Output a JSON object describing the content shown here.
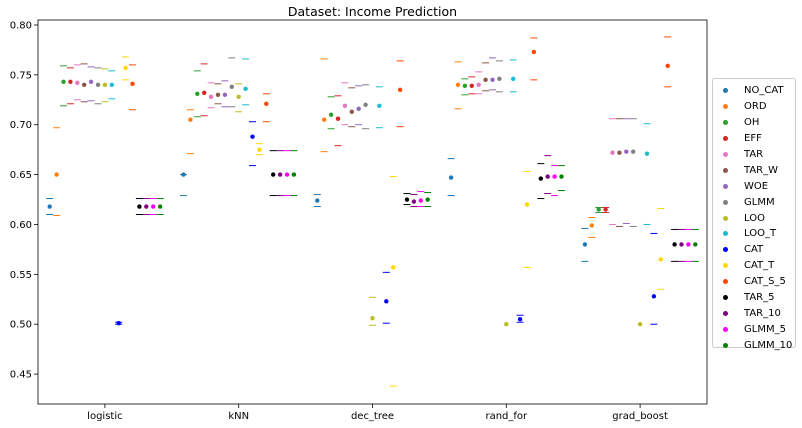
{
  "chart_data": {
    "type": "scatter",
    "title": "Dataset: Income Prediction",
    "xlabel": "",
    "ylabel": "",
    "ylim": [
      0.42,
      0.805
    ],
    "yticks": [
      "0.45",
      "0.50",
      "0.55",
      "0.60",
      "0.65",
      "0.70",
      "0.75",
      "0.80"
    ],
    "categories": [
      "logistic",
      "kNN",
      "dec_tree",
      "rand_for",
      "grad_boost"
    ],
    "legend_position": "center-right",
    "grid": false,
    "series": [
      {
        "name": "NO_CAT",
        "color": "#1f77b4",
        "values": [
          0.618,
          0.65,
          0.624,
          0.647,
          0.58
        ],
        "error_low": [
          0.61,
          0.629,
          0.618,
          0.629,
          0.563
        ],
        "error_high": [
          0.626,
          0.65,
          0.63,
          0.666,
          0.596
        ]
      },
      {
        "name": "ORD",
        "color": "#ff7f0e",
        "values": [
          0.65,
          0.705,
          0.705,
          0.74,
          0.599
        ],
        "error_low": [
          0.609,
          0.671,
          0.673,
          0.716,
          0.587
        ],
        "error_high": [
          0.697,
          0.715,
          0.766,
          0.763,
          0.607
        ]
      },
      {
        "name": "OH",
        "color": "#2ca02c",
        "values": [
          0.743,
          0.731,
          0.71,
          0.739,
          0.615
        ],
        "error_low": [
          0.719,
          0.708,
          0.696,
          0.73,
          0.612
        ],
        "error_high": [
          0.759,
          0.754,
          0.728,
          0.746,
          0.617
        ]
      },
      {
        "name": "EFF",
        "color": "#d62728",
        "values": [
          0.743,
          0.732,
          0.706,
          0.739,
          0.615
        ],
        "error_low": [
          0.721,
          0.709,
          0.679,
          0.731,
          0.612
        ],
        "error_high": [
          0.757,
          0.761,
          0.729,
          0.748,
          0.617
        ]
      },
      {
        "name": "TAR",
        "color": "#e377c2",
        "values": [
          0.742,
          0.728,
          0.719,
          0.74,
          0.672
        ],
        "error_low": [
          0.725,
          0.717,
          0.7,
          0.731,
          0.6
        ],
        "error_high": [
          0.76,
          0.742,
          0.742,
          0.753,
          0.706
        ]
      },
      {
        "name": "TAR_W",
        "color": "#8c564b",
        "values": [
          0.74,
          0.73,
          0.713,
          0.745,
          0.672
        ],
        "error_low": [
          0.723,
          0.721,
          0.698,
          0.734,
          0.598
        ],
        "error_high": [
          0.761,
          0.741,
          0.737,
          0.762,
          0.706
        ]
      },
      {
        "name": "WOE",
        "color": "#9467bd",
        "values": [
          0.743,
          0.73,
          0.716,
          0.745,
          0.673
        ],
        "error_low": [
          0.724,
          0.718,
          0.7,
          0.735,
          0.601
        ],
        "error_high": [
          0.758,
          0.744,
          0.739,
          0.767,
          0.706
        ]
      },
      {
        "name": "GLMM",
        "color": "#7f7f7f",
        "values": [
          0.74,
          0.738,
          0.72,
          0.746,
          0.673
        ],
        "error_low": [
          0.721,
          0.718,
          0.696,
          0.733,
          0.598
        ],
        "error_high": [
          0.757,
          0.767,
          0.74,
          0.764,
          0.706
        ]
      },
      {
        "name": "LOO",
        "color": "#bcbd22",
        "values": [
          0.74,
          0.728,
          0.506,
          0.5,
          0.5
        ],
        "error_low": [
          0.723,
          0.713,
          0.499,
          0.5,
          0.5
        ],
        "error_high": [
          0.756,
          0.741,
          0.527,
          0.5,
          0.5
        ]
      },
      {
        "name": "LOO_T",
        "color": "#17becf",
        "values": [
          0.74,
          0.736,
          0.719,
          0.746,
          0.671
        ],
        "error_low": [
          0.726,
          0.72,
          0.697,
          0.733,
          0.6
        ],
        "error_high": [
          0.754,
          0.766,
          0.738,
          0.765,
          0.701
        ]
      },
      {
        "name": "CAT",
        "color": "#0000ff",
        "values": [
          0.501,
          0.688,
          0.523,
          0.505,
          0.528
        ],
        "error_low": [
          0.5,
          0.659,
          0.501,
          0.502,
          0.5
        ],
        "error_high": [
          0.502,
          0.703,
          0.552,
          0.509,
          0.591
        ]
      },
      {
        "name": "CAT_T",
        "color": "#ffd700",
        "values": [
          0.757,
          0.675,
          0.557,
          0.62,
          0.565
        ],
        "error_low": [
          0.745,
          0.67,
          0.438,
          0.557,
          0.535
        ],
        "error_high": [
          0.768,
          0.681,
          0.648,
          0.653,
          0.616
        ]
      },
      {
        "name": "CAT_S_5",
        "color": "#ff4500",
        "values": [
          0.741,
          0.721,
          0.735,
          0.773,
          0.759
        ],
        "error_low": [
          0.715,
          0.703,
          0.698,
          0.745,
          0.738
        ],
        "error_high": [
          0.76,
          0.731,
          0.764,
          0.787,
          0.788
        ]
      },
      {
        "name": "TAR_5",
        "color": "#000000",
        "values": [
          0.618,
          0.65,
          0.625,
          0.646,
          0.58
        ],
        "error_low": [
          0.61,
          0.629,
          0.62,
          0.626,
          0.563
        ],
        "error_high": [
          0.626,
          0.674,
          0.631,
          0.661,
          0.595
        ]
      },
      {
        "name": "TAR_10",
        "color": "#800080",
        "values": [
          0.618,
          0.65,
          0.623,
          0.648,
          0.58
        ],
        "error_low": [
          0.61,
          0.629,
          0.618,
          0.631,
          0.563
        ],
        "error_high": [
          0.626,
          0.674,
          0.63,
          0.669,
          0.595
        ]
      },
      {
        "name": "GLMM_5",
        "color": "#ff00ff",
        "values": [
          0.618,
          0.65,
          0.624,
          0.648,
          0.58
        ],
        "error_low": [
          0.61,
          0.629,
          0.618,
          0.629,
          0.563
        ],
        "error_high": [
          0.626,
          0.674,
          0.633,
          0.659,
          0.595
        ]
      },
      {
        "name": "GLMM_10",
        "color": "#008000",
        "values": [
          0.618,
          0.65,
          0.625,
          0.648,
          0.58
        ],
        "error_low": [
          0.61,
          0.629,
          0.618,
          0.634,
          0.563
        ],
        "error_high": [
          0.626,
          0.674,
          0.632,
          0.659,
          0.595
        ]
      }
    ]
  }
}
